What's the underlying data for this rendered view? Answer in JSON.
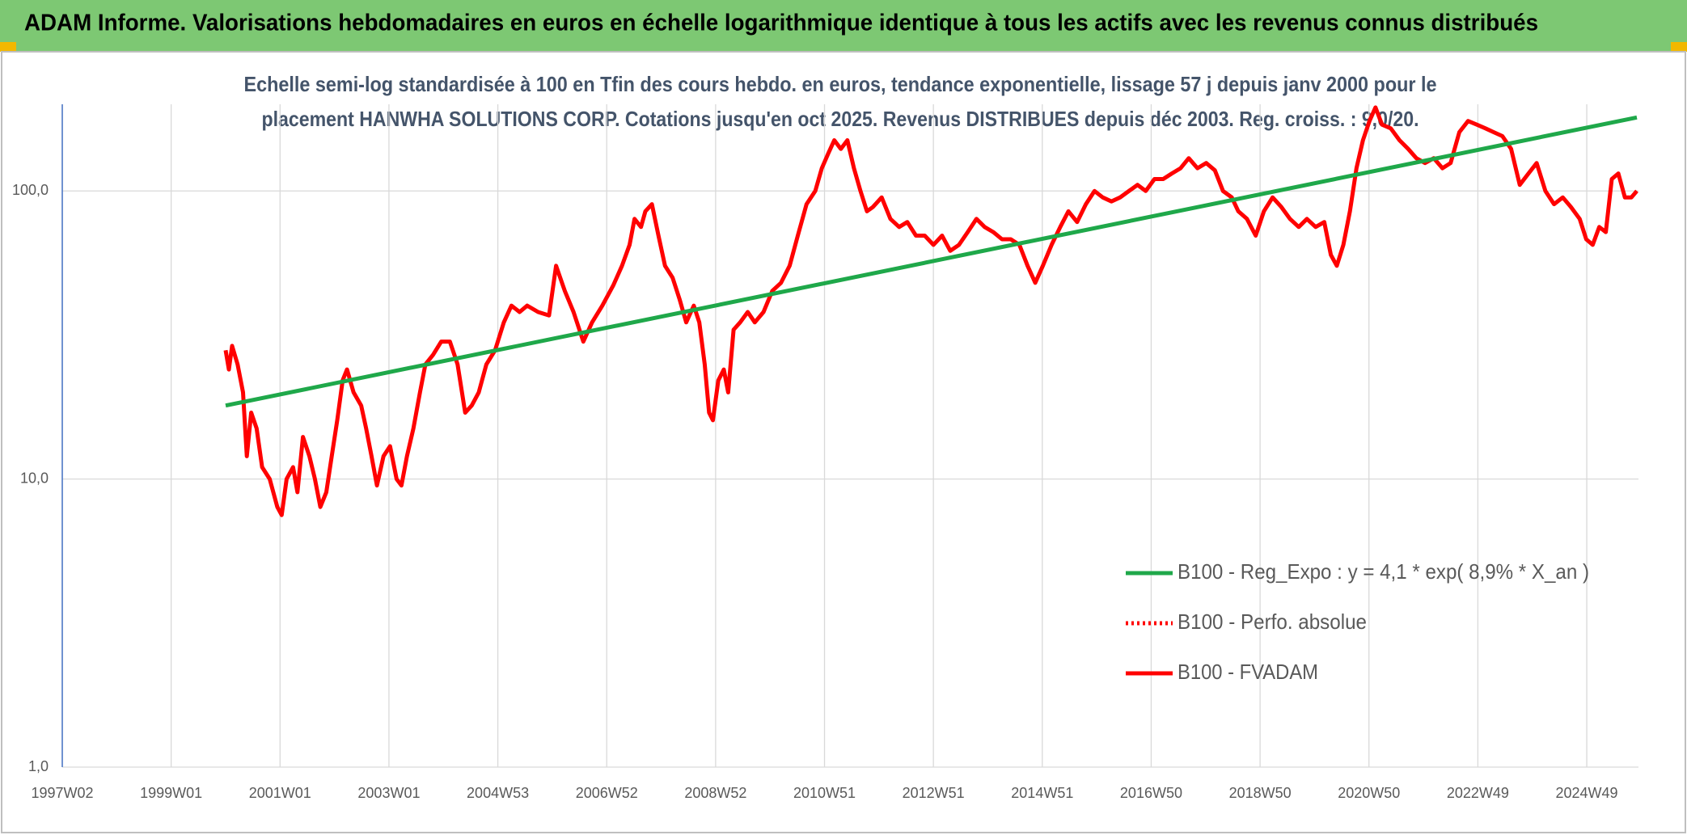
{
  "chart_data": {
    "type": "line",
    "title": "ADAM Informe. Valorisations hebdomadaires en euros en échelle logarithmique identique à tous les actifs avec les revenus connus distribués",
    "subtitle": [
      "Echelle semi-log standardisée à 100 en Tfin des cours hebdo. en euros, tendance exponentielle, lissage 57 j depuis janv 2000 pour le",
      "placement HANWHA SOLUTIONS CORP. Cotations jusqu'en oct 2025. Revenus DISTRIBUES depuis déc 2003. Reg. croiss. : 9,0/20."
    ],
    "log_scale": true,
    "grid": true,
    "legend": "lower right",
    "xlim": [
      1997,
      2025.95
    ],
    "xticks": [
      {
        "value": 1997,
        "label": "1997W02"
      },
      {
        "value": 1999,
        "label": "1999W01"
      },
      {
        "value": 2001,
        "label": "2001W01"
      },
      {
        "value": 2003,
        "label": "2003W01"
      },
      {
        "value": 2005,
        "label": "2004W53"
      },
      {
        "value": 2007,
        "label": "2006W52"
      },
      {
        "value": 2009,
        "label": "2008W52"
      },
      {
        "value": 2011,
        "label": "2010W51"
      },
      {
        "value": 2013,
        "label": "2012W51"
      },
      {
        "value": 2015,
        "label": "2014W51"
      },
      {
        "value": 2017,
        "label": "2016W50"
      },
      {
        "value": 2019,
        "label": "2018W50"
      },
      {
        "value": 2021,
        "label": "2020W50"
      },
      {
        "value": 2023,
        "label": "2022W49"
      },
      {
        "value": 2025,
        "label": "2024W49"
      }
    ],
    "ylim": [
      1,
      200
    ],
    "yticks": [
      {
        "value": 1,
        "label": "1,0"
      },
      {
        "value": 10,
        "label": "10,0"
      },
      {
        "value": 100,
        "label": "100,0"
      }
    ],
    "series": [
      {
        "name": "B100 - Reg_Expo : y = 4,1 * exp( 8,9% *  X_an )",
        "color": "#1fa84a",
        "dash": "solid",
        "x": [
          2000.0,
          2025.92
        ],
        "values": [
          18,
          180
        ]
      },
      {
        "name": "B100 - Perfo. absolue",
        "color": "#ff0000",
        "dash": "dotted",
        "x": [],
        "values": []
      },
      {
        "name": "B100 - FVADAM",
        "color": "#ff0000",
        "dash": "solid",
        "x": [
          2000.0,
          2000.06,
          2000.12,
          2000.22,
          2000.32,
          2000.39,
          2000.47,
          2000.57,
          2000.67,
          2000.81,
          2000.95,
          2001.03,
          2001.12,
          2001.24,
          2001.32,
          2001.42,
          2001.54,
          2001.64,
          2001.74,
          2001.85,
          2001.95,
          2002.05,
          2002.15,
          2002.23,
          2002.35,
          2002.49,
          2002.58,
          2002.68,
          2002.78,
          2002.9,
          2003.02,
          2003.14,
          2003.23,
          2003.33,
          2003.45,
          2003.57,
          2003.67,
          2003.81,
          2003.96,
          2004.12,
          2004.26,
          2004.4,
          2004.52,
          2004.65,
          2004.79,
          2004.95,
          2005.11,
          2005.25,
          2005.4,
          2005.54,
          2005.74,
          2005.94,
          2006.07,
          2006.23,
          2006.39,
          2006.57,
          2006.73,
          2006.92,
          2007.12,
          2007.28,
          2007.42,
          2007.51,
          2007.63,
          2007.71,
          2007.83,
          2007.95,
          2008.07,
          2008.21,
          2008.34,
          2008.46,
          2008.6,
          2008.7,
          2008.8,
          2008.88,
          2008.95,
          2009.05,
          2009.15,
          2009.23,
          2009.33,
          2009.45,
          2009.59,
          2009.72,
          2009.88,
          2010.04,
          2010.2,
          2010.36,
          2010.51,
          2010.67,
          2010.83,
          2010.95,
          2011.07,
          2011.18,
          2011.3,
          2011.42,
          2011.54,
          2011.66,
          2011.78,
          2011.89,
          2012.05,
          2012.21,
          2012.37,
          2012.52,
          2012.68,
          2012.84,
          2013.0,
          2013.16,
          2013.31,
          2013.47,
          2013.63,
          2013.79,
          2013.94,
          2014.1,
          2014.26,
          2014.42,
          2014.58,
          2014.73,
          2014.87,
          2015.01,
          2015.17,
          2015.33,
          2015.48,
          2015.64,
          2015.8,
          2015.96,
          2016.11,
          2016.27,
          2016.43,
          2016.59,
          2016.75,
          2016.9,
          2017.06,
          2017.22,
          2017.38,
          2017.54,
          2017.69,
          2017.85,
          2018.01,
          2018.17,
          2018.32,
          2018.48,
          2018.6,
          2018.76,
          2018.92,
          2019.07,
          2019.23,
          2019.39,
          2019.55,
          2019.71,
          2019.86,
          2020.02,
          2020.18,
          2020.3,
          2020.41,
          2020.53,
          2020.65,
          2020.77,
          2020.89,
          2021.01,
          2021.12,
          2021.24,
          2021.4,
          2021.56,
          2021.72,
          2021.87,
          2022.03,
          2022.19,
          2022.35,
          2022.5,
          2022.66,
          2022.82,
          2022.98,
          2023.14,
          2023.29,
          2023.45,
          2023.61,
          2023.77,
          2023.93,
          2024.08,
          2024.24,
          2024.4,
          2024.56,
          2024.71,
          2024.87,
          2024.99,
          2025.11,
          2025.23,
          2025.35,
          2025.46,
          2025.58,
          2025.7,
          2025.82,
          2025.92
        ],
        "values": [
          28,
          24,
          29,
          25,
          20,
          12,
          17,
          15,
          11,
          10,
          8,
          7.5,
          10,
          11,
          9,
          14,
          12,
          10,
          8,
          9,
          12,
          16,
          22,
          24,
          20,
          18,
          15,
          12,
          9.5,
          12,
          13,
          10,
          9.5,
          12,
          15,
          20,
          25,
          27,
          30,
          30,
          25,
          17,
          18,
          20,
          25,
          28,
          35,
          40,
          38,
          40,
          38,
          37,
          55,
          45,
          38,
          30,
          35,
          40,
          47,
          55,
          65,
          80,
          75,
          85,
          90,
          70,
          55,
          50,
          42,
          35,
          40,
          35,
          25,
          17,
          16,
          22,
          24,
          20,
          33,
          35,
          38,
          35,
          38,
          45,
          48,
          55,
          70,
          90,
          100,
          120,
          135,
          150,
          140,
          150,
          120,
          100,
          85,
          88,
          95,
          80,
          75,
          78,
          70,
          70,
          65,
          70,
          62,
          65,
          72,
          80,
          75,
          72,
          68,
          68,
          65,
          55,
          48,
          55,
          65,
          75,
          85,
          78,
          90,
          100,
          95,
          92,
          95,
          100,
          105,
          100,
          110,
          110,
          115,
          120,
          130,
          120,
          125,
          118,
          100,
          95,
          85,
          80,
          70,
          85,
          95,
          88,
          80,
          75,
          80,
          75,
          78,
          60,
          55,
          65,
          85,
          120,
          150,
          175,
          195,
          170,
          165,
          150,
          140,
          130,
          125,
          130,
          120,
          125,
          160,
          175,
          170,
          165,
          160,
          155,
          140,
          105,
          115,
          125,
          100,
          90,
          95,
          88,
          80,
          68,
          65,
          75,
          72,
          110,
          115,
          95,
          95,
          100
        ]
      }
    ]
  }
}
